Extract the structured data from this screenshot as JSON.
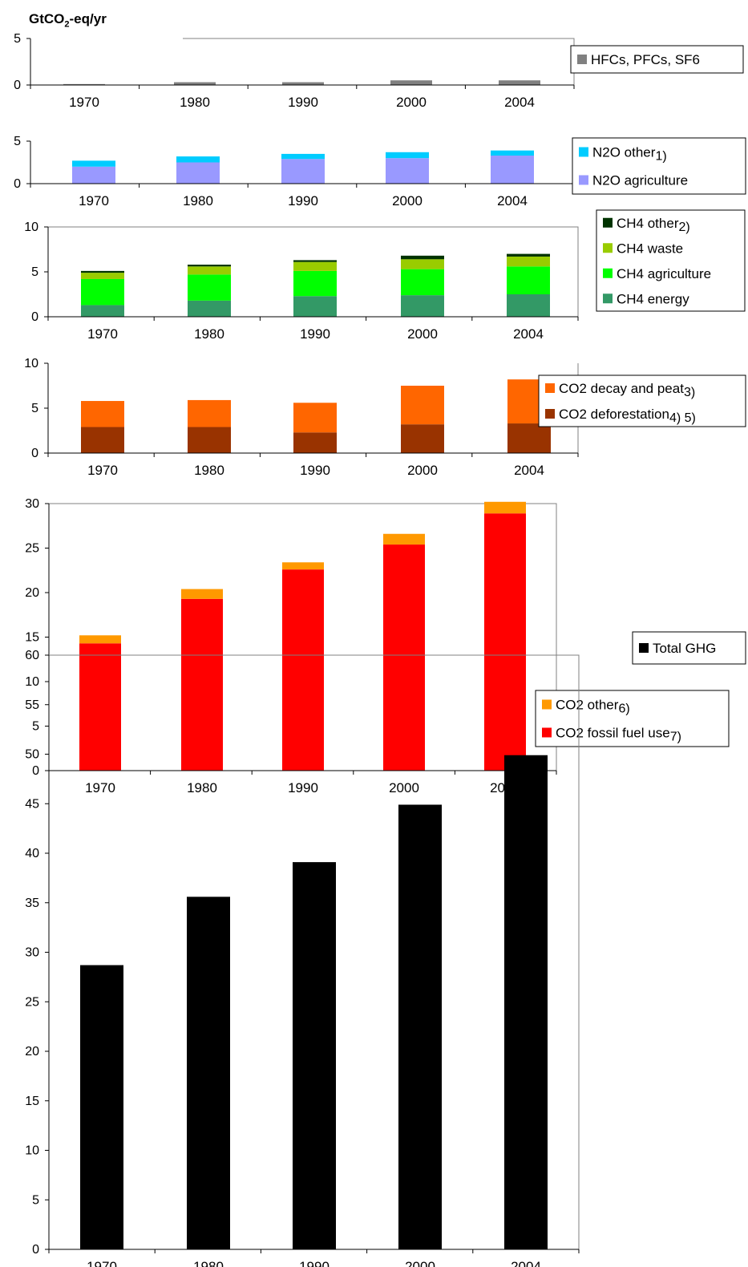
{
  "unit_label": {
    "pre": "GtCO",
    "sub": "2",
    "post": "-eq/yr"
  },
  "chart_data": [
    {
      "type": "bar",
      "stacked": true,
      "categories": [
        "1970",
        "1980",
        "1990",
        "2000",
        "2004"
      ],
      "ylim": [
        0,
        5
      ],
      "yticks": [
        "0",
        "5"
      ],
      "series": [
        {
          "name": "HFCs, PFCs, SF6",
          "color": "#808080",
          "values": [
            0.1,
            0.3,
            0.3,
            0.5,
            0.5
          ],
          "note": ""
        }
      ]
    },
    {
      "type": "bar",
      "stacked": true,
      "categories": [
        "1970",
        "1980",
        "1990",
        "2000",
        "2004"
      ],
      "ylim": [
        0,
        5
      ],
      "yticks": [
        "0",
        "5"
      ],
      "series": [
        {
          "name": "N2O agriculture",
          "color": "#9999ff",
          "values": [
            2.0,
            2.5,
            2.9,
            3.0,
            3.3
          ],
          "note": ""
        },
        {
          "name": "N2O other",
          "color": "#00ccff",
          "values": [
            0.7,
            0.7,
            0.6,
            0.7,
            0.6
          ],
          "note": "1)"
        }
      ]
    },
    {
      "type": "bar",
      "stacked": true,
      "categories": [
        "1970",
        "1980",
        "1990",
        "2000",
        "2004"
      ],
      "ylim": [
        0,
        10
      ],
      "yticks": [
        "0",
        "5",
        "10"
      ],
      "series": [
        {
          "name": "CH4 energy",
          "color": "#339966",
          "values": [
            1.3,
            1.8,
            2.3,
            2.4,
            2.5
          ],
          "note": ""
        },
        {
          "name": "CH4 agriculture",
          "color": "#00ff00",
          "values": [
            2.9,
            2.9,
            2.8,
            2.9,
            3.1
          ],
          "note": ""
        },
        {
          "name": "CH4 waste",
          "color": "#99cc00",
          "values": [
            0.7,
            0.9,
            1.0,
            1.1,
            1.1
          ],
          "note": ""
        },
        {
          "name": "CH4  other",
          "color": "#003300",
          "values": [
            0.2,
            0.2,
            0.2,
            0.4,
            0.3
          ],
          "note": "2)"
        }
      ]
    },
    {
      "type": "bar",
      "stacked": true,
      "categories": [
        "1970",
        "1980",
        "1990",
        "2000",
        "2004"
      ],
      "ylim": [
        0,
        10
      ],
      "yticks": [
        "0",
        "5",
        "10"
      ],
      "series": [
        {
          "name": "CO2 deforestation",
          "color": "#993300",
          "values": [
            2.9,
            2.9,
            2.3,
            3.2,
            3.3
          ],
          "note": "4) 5)"
        },
        {
          "name": "CO2 decay and peat",
          "color": "#ff6600",
          "values": [
            2.9,
            3.0,
            3.3,
            4.3,
            4.9
          ],
          "note": "3)"
        }
      ]
    },
    {
      "type": "bar",
      "stacked": true,
      "categories": [
        "1970",
        "1980",
        "1990",
        "2000",
        "2004"
      ],
      "ylim": [
        0,
        30
      ],
      "yticks": [
        "0",
        "5",
        "10",
        "15",
        "20",
        "25",
        "30"
      ],
      "series": [
        {
          "name": "CO2 fossil fuel use",
          "color": "#ff0000",
          "values": [
            14.3,
            19.3,
            22.6,
            25.4,
            28.9
          ],
          "note": "7)"
        },
        {
          "name": "CO2 other",
          "color": "#ff9900",
          "values": [
            0.9,
            1.1,
            0.8,
            1.2,
            1.3
          ],
          "note": "6)"
        }
      ]
    },
    {
      "type": "bar",
      "stacked": false,
      "categories": [
        "1970",
        "1980",
        "1990",
        "2000",
        "2004"
      ],
      "ylim": [
        0,
        60
      ],
      "yticks": [
        "0",
        "5",
        "10",
        "15",
        "20",
        "25",
        "30",
        "35",
        "40",
        "45",
        "50",
        "55",
        "60"
      ],
      "series": [
        {
          "name": "Total GHG",
          "color": "#000000",
          "values": [
            28.7,
            35.6,
            39.1,
            44.9,
            49.9
          ],
          "note": ""
        }
      ]
    }
  ]
}
